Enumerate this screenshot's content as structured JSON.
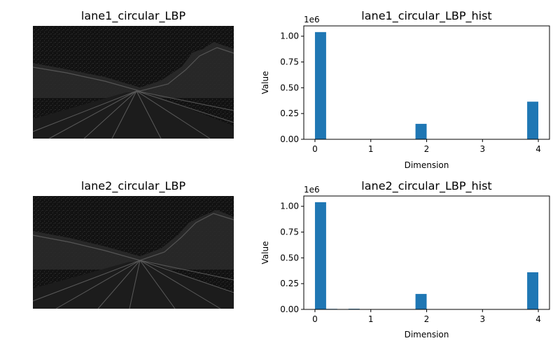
{
  "colors": {
    "bar": "#1f77b4",
    "image_bg": "#111111",
    "image_sky": "#1a1a1a",
    "image_texture": "#3c3c3c",
    "axis": "#000000"
  },
  "image_panels": [
    {
      "title": "lane1_circular_LBP"
    },
    {
      "title": "lane2_circular_LBP"
    }
  ],
  "chart_data": [
    {
      "type": "bar",
      "title": "lane1_circular_LBP_hist",
      "xlabel": "Dimension",
      "ylabel": "Value",
      "y_offset_label": "1e6",
      "xlim": [
        -0.2,
        4.2
      ],
      "ylim": [
        0,
        1.1
      ],
      "xticks": [
        0,
        1,
        2,
        3,
        4
      ],
      "xtick_labels": [
        "0",
        "1",
        "2",
        "3",
        "4"
      ],
      "yticks": [
        0,
        0.25,
        0.5,
        0.75,
        1.0
      ],
      "ytick_labels": [
        "0.00",
        "0.25",
        "0.50",
        "0.75",
        "1.00"
      ],
      "bin_edges": [
        0.0,
        0.2,
        0.4,
        0.6,
        0.8,
        1.0,
        1.2,
        1.4,
        1.6,
        1.8,
        2.0,
        2.2,
        2.4,
        2.6,
        2.8,
        3.0,
        3.2,
        3.4,
        3.6,
        3.8,
        4.0
      ],
      "values": [
        1.04,
        0,
        0,
        0,
        0,
        0,
        0,
        0,
        0,
        0.15,
        0,
        0,
        0,
        0,
        0,
        0,
        0,
        0,
        0,
        0.365
      ]
    },
    {
      "type": "bar",
      "title": "lane2_circular_LBP_hist",
      "xlabel": "Dimension",
      "ylabel": "Value",
      "y_offset_label": "1e6",
      "xlim": [
        -0.2,
        4.2
      ],
      "ylim": [
        0,
        1.1
      ],
      "xticks": [
        0,
        1,
        2,
        3,
        4
      ],
      "xtick_labels": [
        "0",
        "1",
        "2",
        "3",
        "4"
      ],
      "yticks": [
        0,
        0.25,
        0.5,
        0.75,
        1.0
      ],
      "ytick_labels": [
        "0.00",
        "0.25",
        "0.50",
        "0.75",
        "1.00"
      ],
      "bin_edges": [
        0.0,
        0.2,
        0.4,
        0.6,
        0.8,
        1.0,
        1.2,
        1.4,
        1.6,
        1.8,
        2.0,
        2.2,
        2.4,
        2.6,
        2.8,
        3.0,
        3.2,
        3.4,
        3.6,
        3.8,
        4.0
      ],
      "values": [
        1.04,
        0.005,
        0,
        0.006,
        0,
        0,
        0,
        0,
        0,
        0.15,
        0,
        0,
        0,
        0,
        0,
        0,
        0,
        0,
        0,
        0.36
      ]
    }
  ]
}
